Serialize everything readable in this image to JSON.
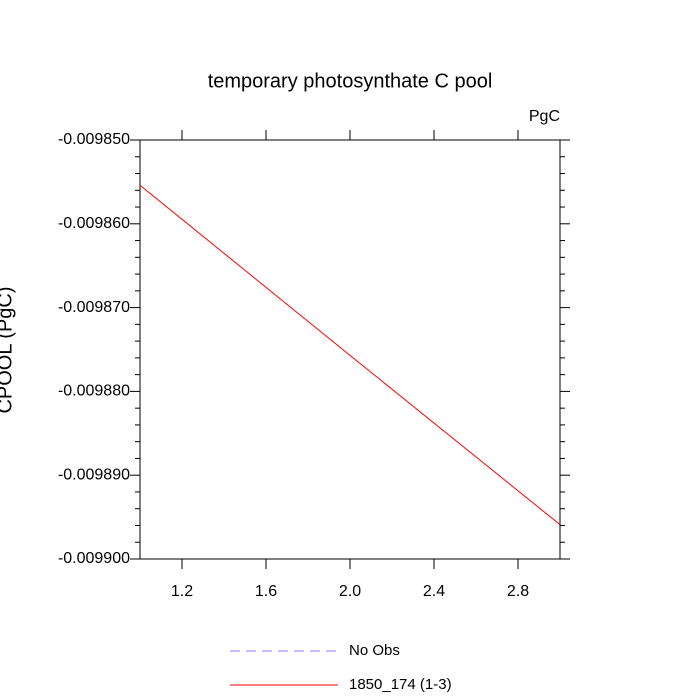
{
  "chart_data": {
    "type": "line",
    "title": "temporary photosynthate C pool",
    "units_label": "PgC",
    "y_label": "CPOOL (PgC)",
    "x": [
      1,
      2,
      3
    ],
    "series": [
      {
        "name": "No Obs",
        "color": "#8080ff",
        "dash": true,
        "values": [
          null,
          null,
          null
        ]
      },
      {
        "name": "1850_174 (1-3)",
        "color": "#ff0000",
        "dash": false,
        "values": [
          -0.0098554,
          -0.0098757,
          -0.0098959
        ]
      }
    ],
    "xlim": [
      1,
      3
    ],
    "xticks": [
      1.2,
      1.6,
      {
        "value": 2,
        "label": "2.0"
      },
      2.4,
      2.8
    ],
    "ylim": [
      -0.0099,
      -0.00985
    ],
    "yticks": [
      {
        "value": -0.0099,
        "label": "-0.009900"
      },
      {
        "value": -0.00989,
        "label": "-0.009890"
      },
      {
        "value": -0.00988,
        "label": "-0.009880"
      },
      {
        "value": -0.00987,
        "label": "-0.009870"
      },
      {
        "value": -0.00986,
        "label": "-0.009860"
      },
      {
        "value": -0.00985,
        "label": "-0.009850"
      }
    ],
    "grid": false
  }
}
